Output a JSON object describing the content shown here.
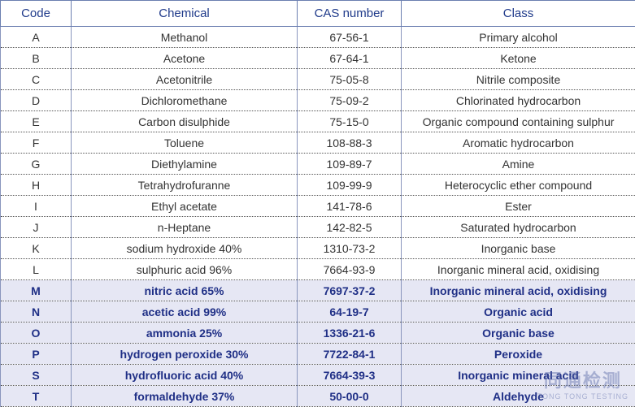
{
  "table": {
    "header": [
      "Code",
      "Chemical",
      "CAS number",
      "Class"
    ],
    "rows": [
      {
        "cells": [
          "A",
          "Methanol",
          "67-56-1",
          "Primary alcohol"
        ],
        "emphasis": false
      },
      {
        "cells": [
          "B",
          "Acetone",
          "67-64-1",
          "Ketone"
        ],
        "emphasis": false
      },
      {
        "cells": [
          "C",
          "Acetonitrile",
          "75-05-8",
          "Nitrile composite"
        ],
        "emphasis": false
      },
      {
        "cells": [
          "D",
          "Dichloromethane",
          "75-09-2",
          "Chlorinated hydrocarbon"
        ],
        "emphasis": false
      },
      {
        "cells": [
          "E",
          "Carbon disulphide",
          "75-15-0",
          "Organic compound containing sulphur"
        ],
        "emphasis": false
      },
      {
        "cells": [
          "F",
          "Toluene",
          "108-88-3",
          "Aromatic hydrocarbon"
        ],
        "emphasis": false
      },
      {
        "cells": [
          "G",
          "Diethylamine",
          "109-89-7",
          "Amine"
        ],
        "emphasis": false
      },
      {
        "cells": [
          "H",
          "Tetrahydrofuranne",
          "109-99-9",
          "Heterocyclic ether compound"
        ],
        "emphasis": false
      },
      {
        "cells": [
          "I",
          "Ethyl acetate",
          "141-78-6",
          "Ester"
        ],
        "emphasis": false
      },
      {
        "cells": [
          "J",
          "n-Heptane",
          "142-82-5",
          "Saturated hydrocarbon"
        ],
        "emphasis": false
      },
      {
        "cells": [
          "K",
          "sodium hydroxide 40%",
          "1310-73-2",
          "Inorganic base"
        ],
        "emphasis": false
      },
      {
        "cells": [
          "L",
          "sulphuric acid 96%",
          "7664-93-9",
          "Inorganic mineral acid, oxidising"
        ],
        "emphasis": false
      },
      {
        "cells": [
          "M",
          "nitric acid 65%",
          "7697-37-2",
          "Inorganic mineral acid, oxidising"
        ],
        "emphasis": true
      },
      {
        "cells": [
          "N",
          "acetic acid 99%",
          "64-19-7",
          "Organic acid"
        ],
        "emphasis": true
      },
      {
        "cells": [
          "O",
          "ammonia 25%",
          "1336-21-6",
          "Organic base"
        ],
        "emphasis": true
      },
      {
        "cells": [
          "P",
          "hydrogen peroxide 30%",
          "7722-84-1",
          "Peroxide"
        ],
        "emphasis": true
      },
      {
        "cells": [
          "S",
          "hydrofluoric acid 40%",
          "7664-39-3",
          "Inorganic mineral acid"
        ],
        "emphasis": true
      },
      {
        "cells": [
          "T",
          "formaldehyde 37%",
          "50-00-0",
          "Aldehyde"
        ],
        "emphasis": true
      }
    ]
  },
  "watermark": {
    "name": "同通检测",
    "tagline": "TONG TONG TESTING"
  }
}
